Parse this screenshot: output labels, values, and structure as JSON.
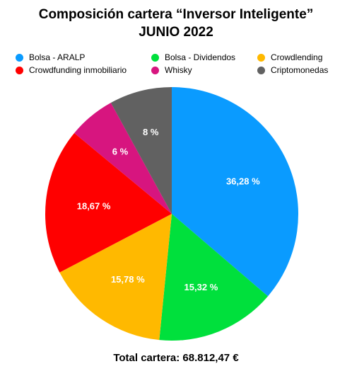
{
  "title_line1": "Composición cartera “Inversor Inteligente”",
  "title_line2": "JUNIO 2022",
  "chart_data": {
    "type": "pie",
    "categories": [
      "Bolsa - ARALP",
      "Bolsa - Dividendos",
      "Crowdlending",
      "Crowdfunding inmobiliario",
      "Whisky",
      "Criptomonedas"
    ],
    "values": [
      36.28,
      15.32,
      15.78,
      18.67,
      6,
      8
    ],
    "data_labels": [
      "36,28 %",
      "15,32 %",
      "15,78 %",
      "18,67 %",
      "6 %",
      "8 %"
    ],
    "colors": [
      "#0a9bff",
      "#00e03c",
      "#ffb900",
      "#ff0000",
      "#d7157f",
      "#616161"
    ],
    "legend_position": "top"
  },
  "footer": "Total cartera: 68.812,47 €"
}
